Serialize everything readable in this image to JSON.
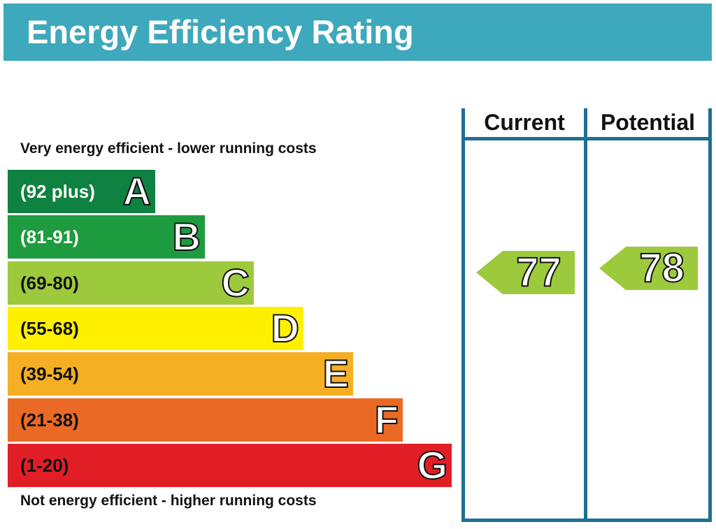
{
  "header": {
    "title": "Energy Efficiency Rating"
  },
  "captions": {
    "top": "Very energy efficient - lower running costs",
    "bottom": "Not energy efficient - higher running costs"
  },
  "columns": {
    "current": "Current",
    "potential": "Potential"
  },
  "chart_data": {
    "type": "bar",
    "bands": [
      {
        "letter": "A",
        "range": "(92 plus)",
        "min": 92,
        "max": null,
        "color": "#0f8140",
        "text_color": "#ffffff"
      },
      {
        "letter": "B",
        "range": "(81-91)",
        "min": 81,
        "max": 91,
        "color": "#1e9b3e",
        "text_color": "#ffffff"
      },
      {
        "letter": "C",
        "range": "(69-80)",
        "min": 69,
        "max": 80,
        "color": "#9dca3c",
        "text_color": "#111111"
      },
      {
        "letter": "D",
        "range": "(55-68)",
        "min": 55,
        "max": 68,
        "color": "#fff000",
        "text_color": "#111111"
      },
      {
        "letter": "E",
        "range": "(39-54)",
        "min": 39,
        "max": 54,
        "color": "#f5af22",
        "text_color": "#111111"
      },
      {
        "letter": "F",
        "range": "(21-38)",
        "min": 21,
        "max": 38,
        "color": "#ea6a25",
        "text_color": "#111111"
      },
      {
        "letter": "G",
        "range": "(1-20)",
        "min": 1,
        "max": 20,
        "color": "#e11e26",
        "text_color": "#111111"
      }
    ],
    "ratings": {
      "current": {
        "value": 77,
        "band": "C",
        "color": "#9dca3c"
      },
      "potential": {
        "value": 78,
        "band": "C",
        "color": "#9dca3c"
      }
    }
  }
}
